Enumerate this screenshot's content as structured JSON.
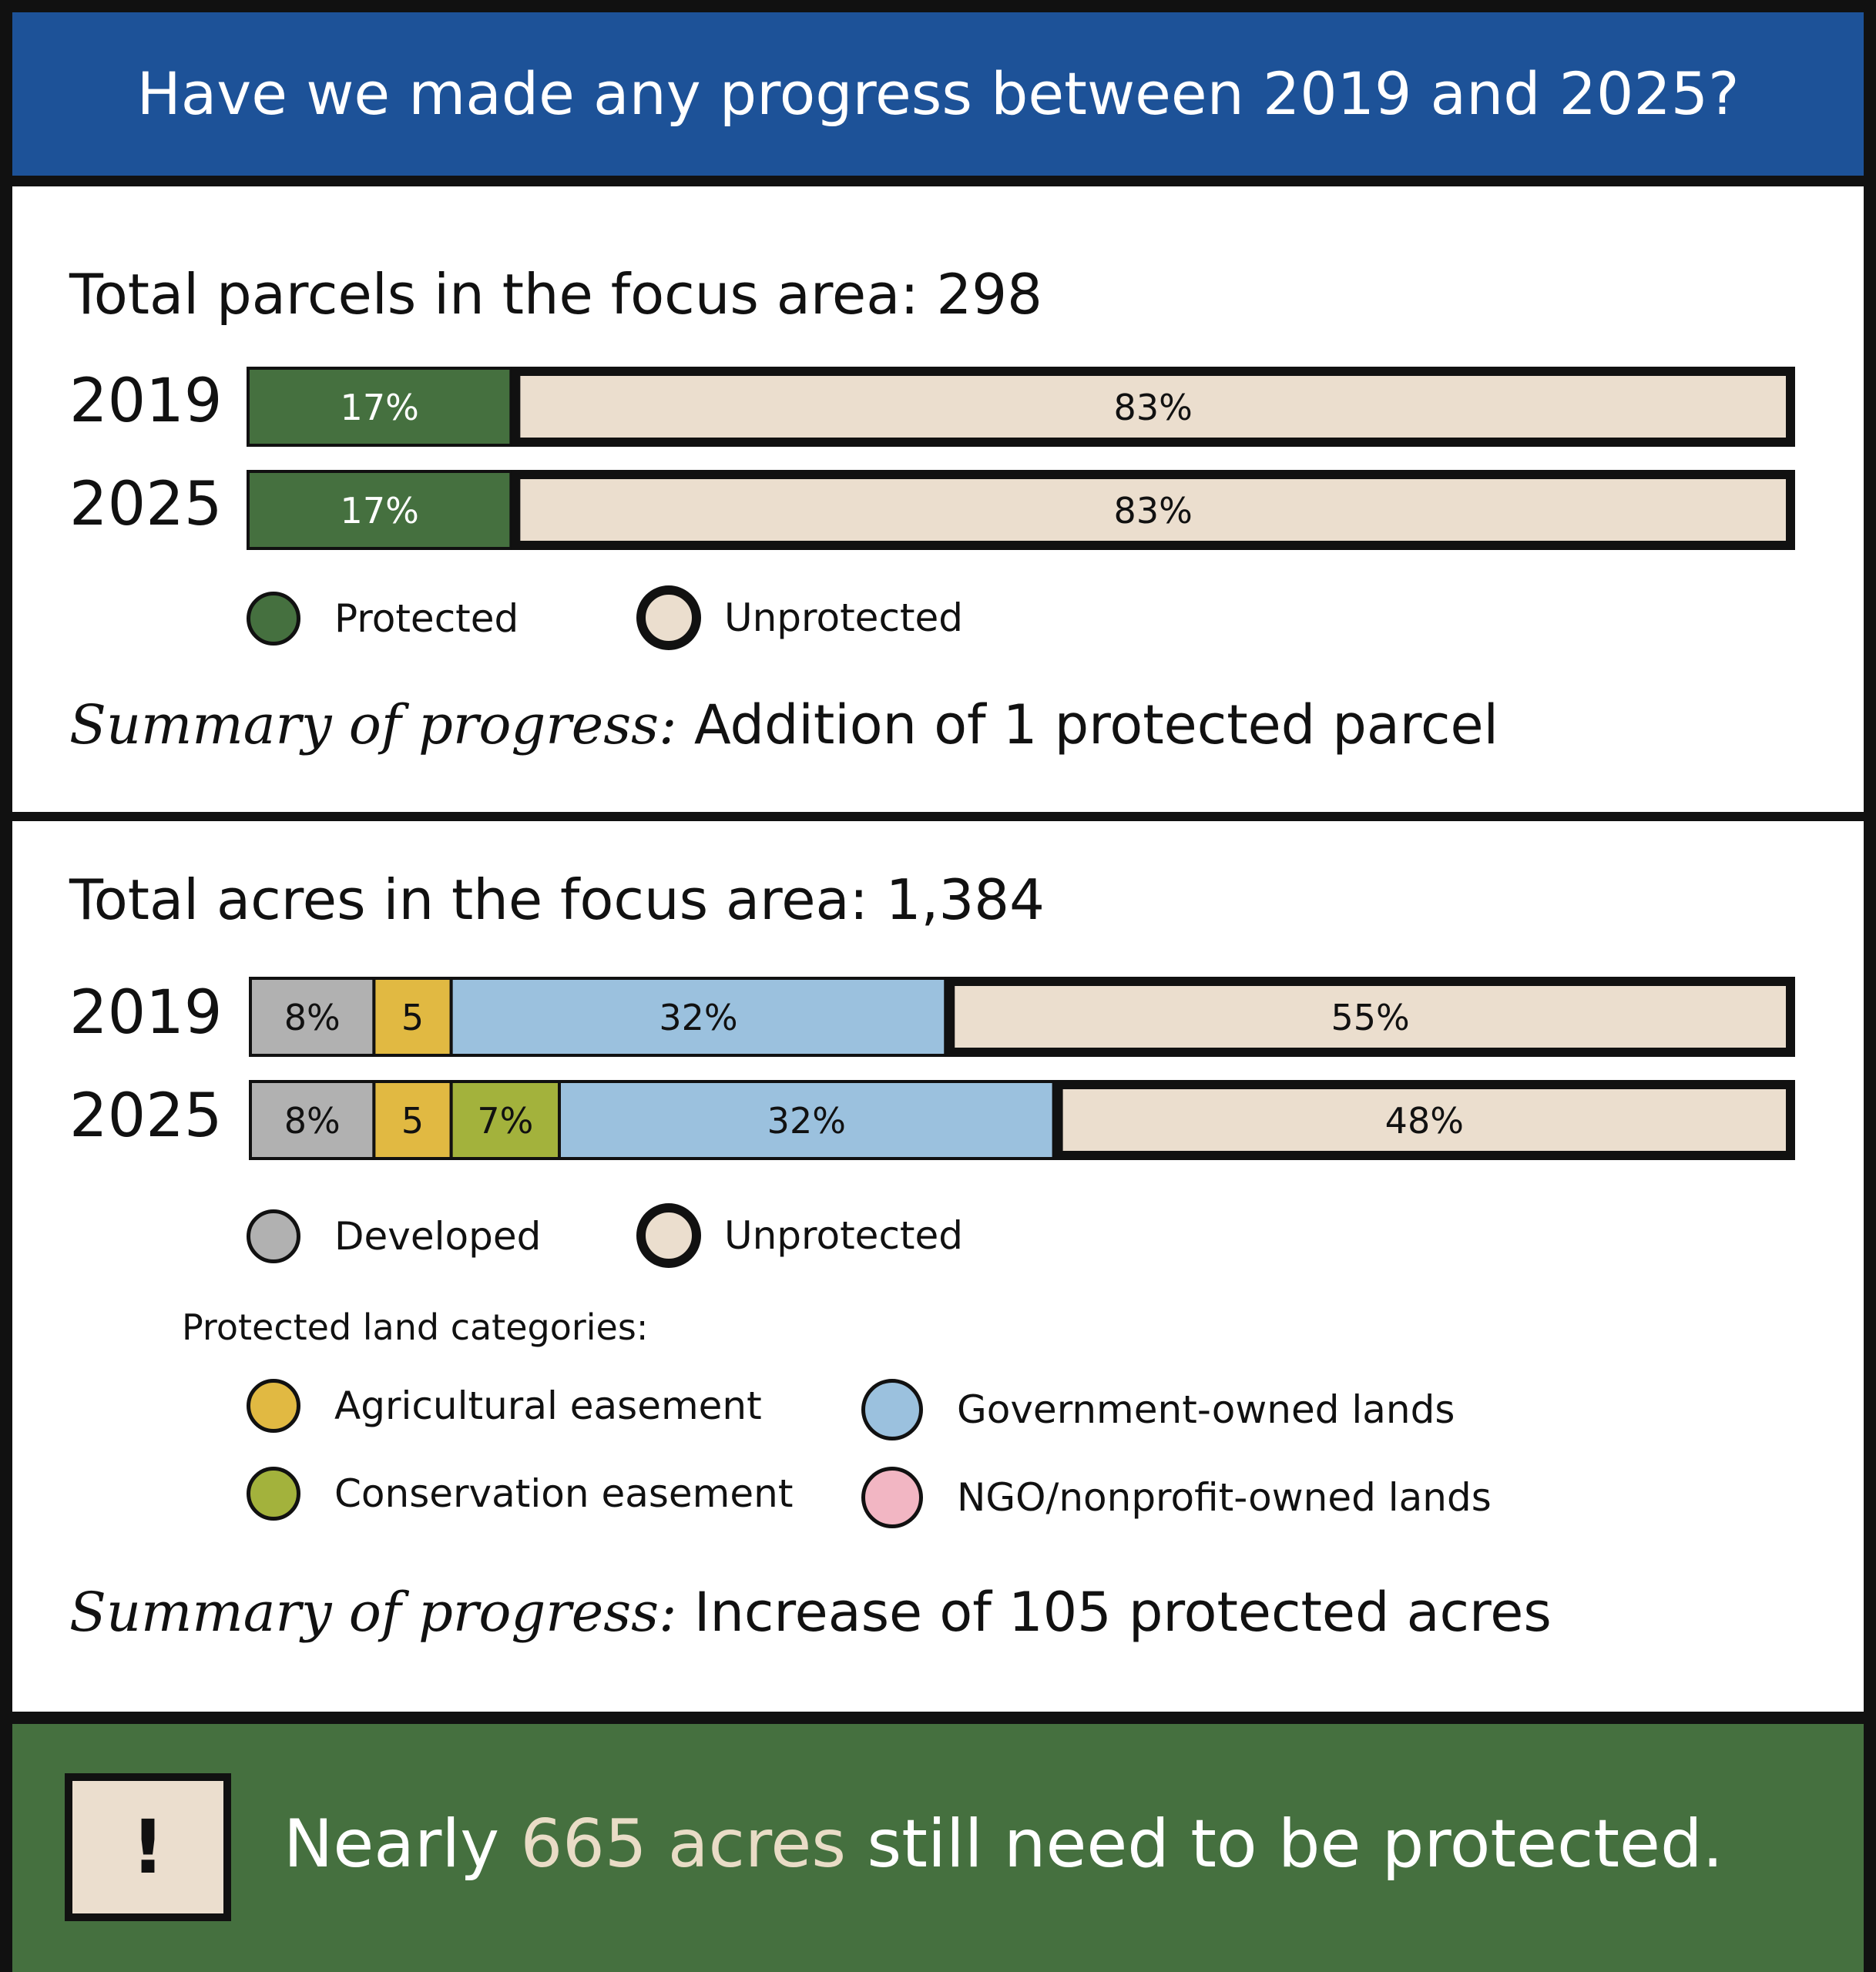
{
  "header": {
    "title": "Have we made any progress between 2019 and 2025?"
  },
  "colors": {
    "protected": "#45703f",
    "unprotected": "#ebdece",
    "developed": "#b1b1b1",
    "agricultural": "#e1b942",
    "conservation": "#a3b23c",
    "government": "#9bc1de",
    "ngo": "#f2b6c3"
  },
  "parcels": {
    "title": "Total parcels in the focus area: 298",
    "legend": {
      "protected": "Protected",
      "unprotected": "Unprotected"
    },
    "summary_lead": "Summary of progress:",
    "summary_text": " Addition of 1 protected parcel"
  },
  "acres": {
    "title": "Total acres in the focus area: 1,384",
    "legend": {
      "developed": "Developed",
      "unprotected": "Unprotected"
    },
    "categories_heading": "Protected land categories:",
    "categories": {
      "agricultural": "Agricultural easement",
      "government": "Government-owned lands",
      "conservation": "Conservation easement",
      "ngo": "NGO/nonprofit-owned lands"
    },
    "summary_lead": "Summary of progress:",
    "summary_text": " Increase of 105 protected acres"
  },
  "footer": {
    "alert_symbol": "!",
    "text_before": "Nearly ",
    "text_highlight": "665 acres",
    "text_after": " still need to be protected."
  },
  "chart_data": [
    {
      "type": "bar",
      "orientation": "horizontal-stacked",
      "title": "Total parcels in the focus area: 298",
      "categories": [
        "2019",
        "2025"
      ],
      "series": [
        {
          "name": "Protected",
          "color": "#45703f",
          "values": [
            17,
            17
          ],
          "labels": [
            "17%",
            "17%"
          ]
        },
        {
          "name": "Unprotected",
          "color": "#ebdece",
          "values": [
            83,
            83
          ],
          "labels": [
            "83%",
            "83%"
          ]
        }
      ]
    },
    {
      "type": "bar",
      "orientation": "horizontal-stacked",
      "title": "Total acres in the focus area: 1,384",
      "categories": [
        "2019",
        "2025"
      ],
      "series": [
        {
          "name": "Developed",
          "color": "#b1b1b1",
          "values": [
            8,
            8
          ],
          "labels": [
            "8%",
            "8%"
          ]
        },
        {
          "name": "Agricultural easement",
          "color": "#e1b942",
          "values": [
            5,
            5
          ],
          "labels": [
            "5",
            "5"
          ]
        },
        {
          "name": "Conservation easement",
          "color": "#a3b23c",
          "values": [
            0,
            7
          ],
          "labels": [
            "",
            "7%"
          ]
        },
        {
          "name": "Government-owned lands",
          "color": "#9bc1de",
          "values": [
            32,
            32
          ],
          "labels": [
            "32%",
            "32%"
          ]
        },
        {
          "name": "Unprotected",
          "color": "#ebdece",
          "values": [
            55,
            48
          ],
          "labels": [
            "55%",
            "48%"
          ]
        }
      ]
    }
  ]
}
